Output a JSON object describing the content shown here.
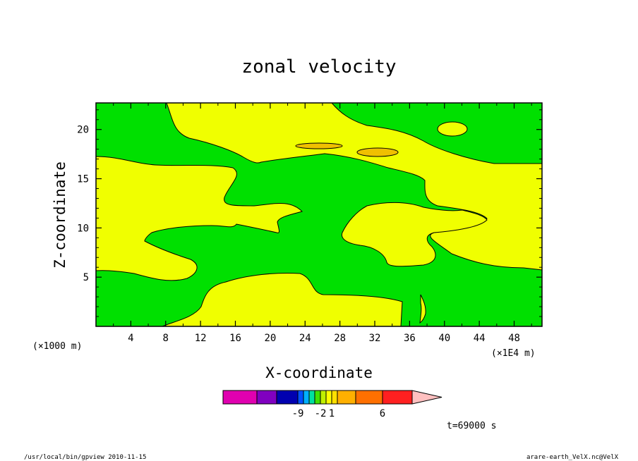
{
  "chart_data": {
    "type": "heatmap",
    "title": "zonal velocity",
    "xlabel": "X-coordinate",
    "ylabel": "Z-coordinate",
    "x_unit_left": "(×1000 m)",
    "x_unit_right": "(×1E4 m)",
    "x_ticks": [
      4,
      8,
      12,
      16,
      20,
      24,
      28,
      32,
      36,
      40,
      44,
      48
    ],
    "y_ticks": [
      5,
      10,
      15,
      20
    ],
    "xlim": [
      0,
      51.2
    ],
    "ylim": [
      0,
      22.7
    ],
    "colorbar": {
      "colors": [
        "#e000b0",
        "#8000c0",
        "#0000b0",
        "#0050ff",
        "#00b0ff",
        "#00e0a0",
        "#40e000",
        "#c0f000",
        "#ffff00",
        "#ffe000",
        "#ffb000",
        "#ff7000",
        "#ff2020",
        "#ff8080",
        "#ffc0c0"
      ],
      "labels": [
        {
          "text": "-9",
          "index": 2
        },
        {
          "text": "-2",
          "index": 6
        },
        {
          "text": "1",
          "index": 8
        },
        {
          "text": "6",
          "index": 11
        }
      ]
    },
    "field_colors": {
      "green": "#00e000",
      "yellow": "#f0ff00",
      "orange": "#f0c000"
    },
    "time_label": "t=69000 s"
  },
  "footer": {
    "left": "/usr/local/bin/gpview  2010-11-15",
    "right": "arare-earth_VelX.nc@VelX"
  }
}
